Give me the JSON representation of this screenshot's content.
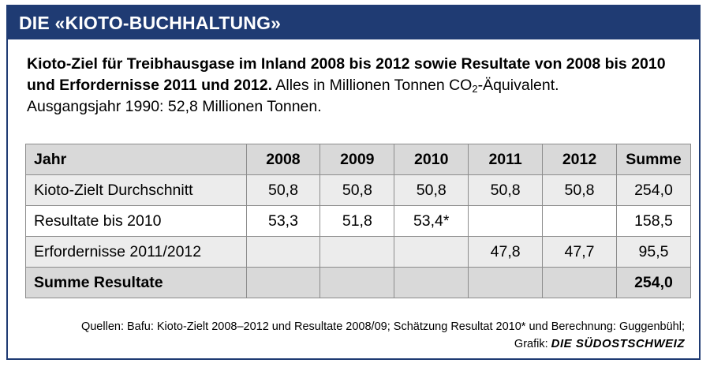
{
  "header": {
    "title": "DIE «KIOTO-BUCHHALTUNG»"
  },
  "intro": {
    "lead": "Kioto-Ziel für Treibhausgase im Inland 2008 bis 2012 sowie Resultate von 2008 bis 2010 und Erfordernisse 2011 und 2012.",
    "unit_pre": "Alles in Millionen Tonnen CO",
    "unit_sub": "2",
    "unit_post": "-Äquivalent.",
    "baseline": "Ausgangsjahr 1990: 52,8 Millionen Tonnen."
  },
  "table": {
    "headers": [
      "Jahr",
      "2008",
      "2009",
      "2010",
      "2011",
      "2012",
      "Summe"
    ],
    "rows": [
      {
        "label": "Kioto-Zielt Durchschnitt",
        "cells": [
          "50,8",
          "50,8",
          "50,8",
          "50,8",
          "50,8",
          "254,0"
        ]
      },
      {
        "label": "Resultate bis 2010",
        "cells": [
          "53,3",
          "51,8",
          "53,4*",
          "",
          "",
          "158,5"
        ]
      },
      {
        "label": "Erfordernisse 2011/2012",
        "cells": [
          "",
          "",
          "",
          "47,8",
          "47,7",
          "95,5"
        ]
      },
      {
        "label": "Summe Resultate",
        "cells": [
          "",
          "",
          "",
          "",
          "",
          "254,0"
        ]
      }
    ]
  },
  "footer": {
    "sources": "Quellen: Bafu: Kioto-Zielt 2008–2012 und Resultate 2008/09; Schätzung Resultat 2010* und Berechnung: Guggenbühl;",
    "grafik_label": "Grafik:",
    "brand": "DIE SÜDOSTSCHWEIZ"
  },
  "colors": {
    "title_bar": "#1f3b73",
    "header_row": "#d9d9d9",
    "alt_row": "#ececec"
  }
}
